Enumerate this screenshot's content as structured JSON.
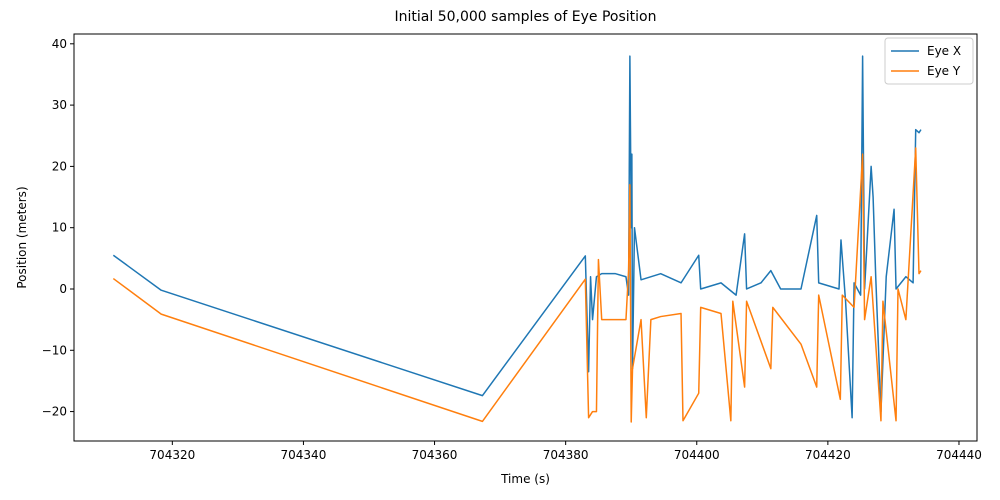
{
  "chart_data": {
    "type": "line",
    "title": "Initial 50,000 samples of Eye Position",
    "x_label": "Time (s)",
    "y_label": "Position (meters)",
    "xlim": [
      704305.0,
      704442.75
    ],
    "ylim": [
      -24.8,
      41.6
    ],
    "xticks": [
      704320,
      704340,
      704360,
      704380,
      704400,
      704420,
      704440
    ],
    "yticks": [
      {
        "value": -20,
        "label": "−20"
      },
      {
        "value": -10,
        "label": "−10"
      },
      0,
      10,
      20,
      30,
      40
    ],
    "legend": "upper right",
    "series": [
      {
        "name": "Eye X",
        "color": "#1f77b4",
        "x": [
          704311,
          704318.3,
          704367.3,
          704383.0,
          704383.5,
          704383.8,
          704384.1,
          704384.7,
          704385.5,
          704387.6,
          704389.2,
          704389.6,
          704389.8,
          704390.0,
          704390.1,
          704390.2,
          704390.5,
          704391.5,
          704394.5,
          704397.6,
          704400.3,
          704400.6,
          704403.7,
          704406.0,
          704407.3,
          704407.6,
          704409.8,
          704411.3,
          704412.8,
          704415.9,
          704418.3,
          704418.6,
          704421.7,
          704422.0,
          704422.7,
          704423.7,
          704424.0,
          704425.0,
          704425.3,
          704425.6,
          704426.6,
          704426.9,
          704427.3,
          704428.1,
          704428.9,
          704430.1,
          704430.4,
          704431.9,
          704433.0,
          704433.4,
          704433.9,
          704434.2
        ],
        "values": [
          5.5,
          -0.2,
          -17.4,
          5.4,
          -13.5,
          2,
          -5,
          2,
          2.5,
          2.5,
          2,
          -1,
          38,
          10,
          22,
          -13,
          10,
          1.5,
          2.5,
          1,
          5.5,
          0,
          1,
          -1,
          9,
          0,
          1,
          3,
          0,
          0,
          12,
          1,
          0,
          8,
          -2,
          -21,
          1,
          -1,
          38,
          0,
          20,
          15,
          2,
          -20,
          2,
          13,
          0,
          2,
          1,
          26,
          25.5,
          26
        ]
      },
      {
        "name": "Eye Y",
        "color": "#ff7f0e",
        "x": [
          704311,
          704318.3,
          704367.3,
          704383.0,
          704383.5,
          704384.1,
          704384.7,
          704385.0,
          704385.5,
          704387.6,
          704389.2,
          704389.6,
          704389.8,
          704390.0,
          704390.2,
          704391.5,
          704392.3,
          704393.0,
          704394.5,
          704397.6,
          704397.9,
          704400.3,
          704400.6,
          704403.7,
          704405.2,
          704405.5,
          704407.3,
          704407.6,
          704411.3,
          704411.6,
          704415.9,
          704418.3,
          704418.6,
          704421.9,
          704422.2,
          704424.0,
          704425.3,
          704425.6,
          704426.6,
          704428.1,
          704428.4,
          704430.4,
          704430.7,
          704431.9,
          704433.4,
          704433.9,
          704434.2
        ],
        "values": [
          1.7,
          -4.1,
          -21.6,
          1.6,
          -21,
          -20,
          -20,
          4.8,
          -5,
          -5,
          -5,
          3,
          17,
          -21.7,
          -13,
          -5,
          -21,
          -5,
          -4.5,
          -4,
          -21.5,
          -17,
          -3,
          -4,
          -21.5,
          -2,
          -16,
          -2,
          -13,
          -3,
          -9,
          -16,
          -1,
          -18,
          -1,
          -3,
          22,
          -5,
          2,
          -21.5,
          -2,
          -21.5,
          0,
          -5,
          23,
          2.5,
          3
        ]
      }
    ]
  }
}
